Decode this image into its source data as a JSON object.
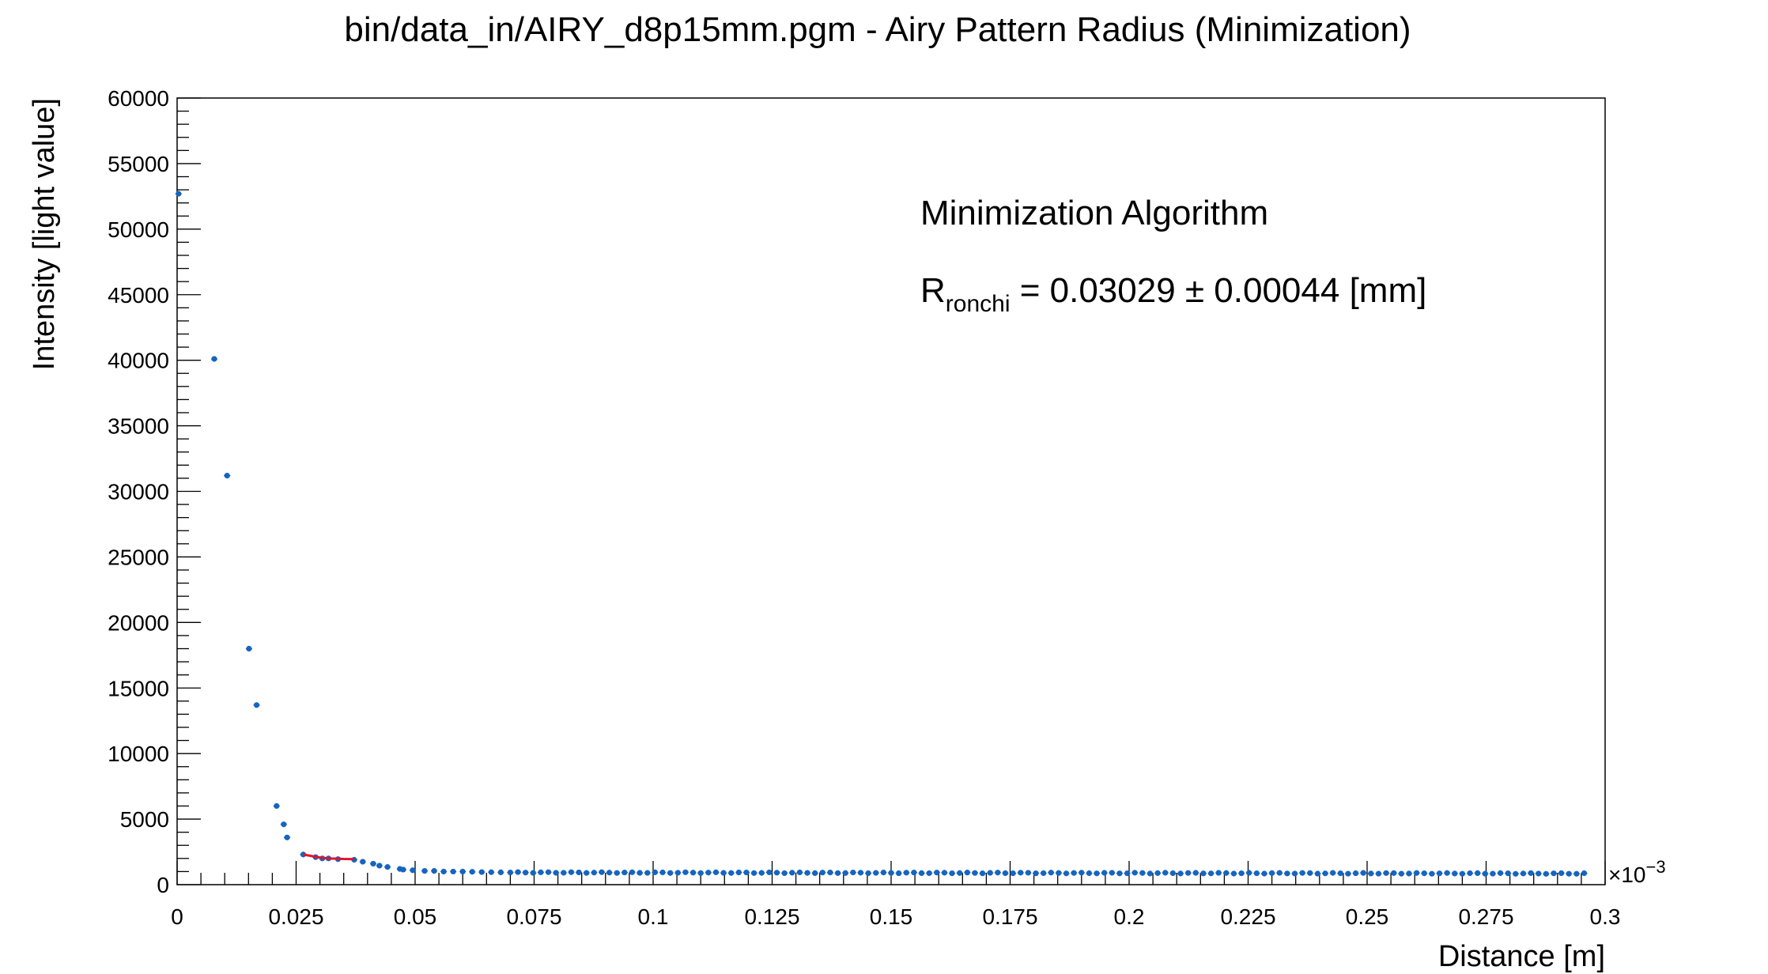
{
  "chart_data": {
    "type": "scatter",
    "title": "bin/data_in/AIRY_d8p15mm.pgm - Airy Pattern Radius (Minimization)",
    "xlabel": "Distance [m]",
    "ylabel": "Intensity [light value]",
    "x_exponent": "×10",
    "x_exponent_power": "−3",
    "xlim": [
      0,
      0.3
    ],
    "ylim": [
      0,
      60000
    ],
    "x_ticks": [
      "0",
      "0.025",
      "0.05",
      "0.075",
      "0.1",
      "0.125",
      "0.15",
      "0.175",
      "0.2",
      "0.225",
      "0.25",
      "0.275",
      "0.3"
    ],
    "y_ticks": [
      "0",
      "5000",
      "10000",
      "15000",
      "20000",
      "25000",
      "30000",
      "35000",
      "40000",
      "45000",
      "50000",
      "55000",
      "60000"
    ],
    "grid": false,
    "legend": "none",
    "series": [
      {
        "color": "#1565c0",
        "x": [
          0.0003,
          0.0078,
          0.0105,
          0.0151,
          0.0167,
          0.0209,
          0.0224,
          0.0231,
          0.0265,
          0.0291,
          0.0305,
          0.0318,
          0.0338,
          0.0372,
          0.039,
          0.0412,
          0.0425,
          0.0442,
          0.0468,
          0.0475,
          0.0495,
          0.052,
          0.054,
          0.056,
          0.058,
          0.06,
          0.062,
          0.064,
          0.066,
          0.068,
          0.07
        ],
        "y": [
          52700,
          40100,
          31200,
          18000,
          13700,
          6000,
          4600,
          3600,
          2300,
          2100,
          2000,
          2000,
          1950,
          1900,
          1750,
          1600,
          1450,
          1350,
          1200,
          1150,
          1100,
          1050,
          1050,
          1000,
          1000,
          1000,
          980,
          960,
          950,
          940,
          930
        ],
        "tail": {
          "x_start": 0.07,
          "x_end": 0.296,
          "step": 0.0016,
          "y_start": 930,
          "y_end": 850
        }
      }
    ],
    "fit": {
      "color": "#e0142f",
      "x": [
        0.0265,
        0.028,
        0.0295,
        0.0305,
        0.0318,
        0.0335,
        0.035,
        0.0372
      ],
      "y": [
        2300,
        2200,
        2100,
        2050,
        2000,
        1980,
        1960,
        1950
      ]
    },
    "annotations": [
      {
        "text": "Minimization Algorithm"
      },
      {
        "text_main": "R",
        "text_sub": "ronchi",
        "text_rest": " = 0.03029 ± 0.00044 [mm]"
      }
    ]
  }
}
